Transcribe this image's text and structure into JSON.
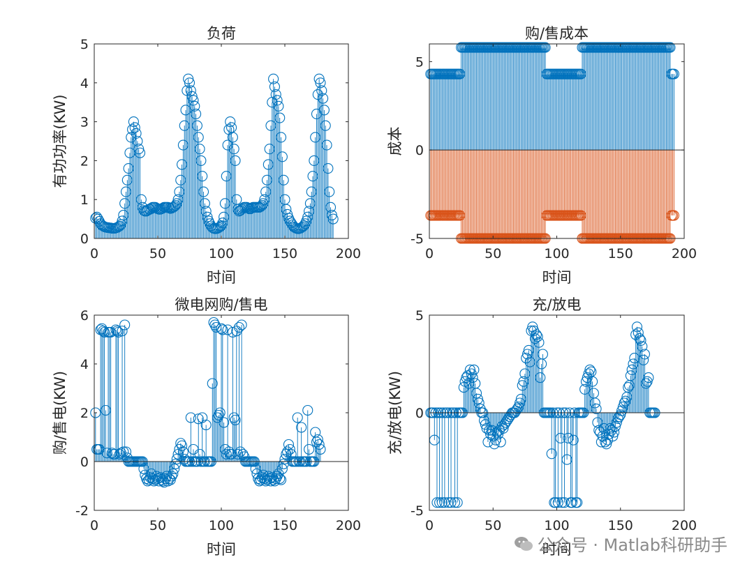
{
  "chart_data": [
    {
      "type": "stem",
      "title": "负荷",
      "xlabel": "时间",
      "ylabel": "有功功率(KW)",
      "xlim": [
        0,
        200
      ],
      "ylim": [
        0,
        5
      ],
      "xticks": [
        0,
        50,
        100,
        150,
        200
      ],
      "yticks": [
        0,
        1,
        2,
        3,
        4,
        5
      ],
      "colors": [
        "#0072BD"
      ],
      "series": [
        {
          "x_start": 1,
          "x_step": 1,
          "values": [
            0.52,
            0.55,
            0.5,
            0.44,
            0.38,
            0.34,
            0.32,
            0.3,
            0.29,
            0.28,
            0.28,
            0.27,
            0.27,
            0.26,
            0.26,
            0.26,
            0.27,
            0.28,
            0.3,
            0.32,
            0.36,
            0.45,
            0.6,
            0.9,
            1.2,
            1.5,
            1.8,
            2.2,
            2.6,
            2.8,
            3.0,
            2.85,
            2.7,
            2.5,
            2.3,
            2.2,
            1.0,
            0.8,
            0.72,
            0.7,
            0.7,
            0.72,
            0.75,
            0.75,
            0.78,
            0.8,
            0.8,
            0.8,
            0.78,
            0.76,
            0.75,
            0.75,
            0.76,
            0.78,
            0.8,
            0.8,
            0.8,
            0.8,
            0.78,
            0.77,
            0.78,
            0.8,
            0.82,
            0.85,
            0.9,
            1.0,
            1.2,
            1.5,
            1.9,
            2.4,
            2.9,
            3.3,
            3.8,
            4.1,
            4.0,
            3.8,
            3.65,
            3.55,
            3.4,
            3.2,
            2.9,
            2.6,
            2.3,
            2.0,
            1.6,
            1.2,
            0.9,
            0.7,
            0.55,
            0.45,
            0.38,
            0.32,
            0.28,
            0.26,
            0.25,
            0.25,
            0.26,
            0.28,
            0.3,
            0.33,
            0.4,
            0.55,
            0.9,
            1.6,
            2.4,
            2.8,
            3.0,
            2.85,
            2.6,
            2.3,
            2.0,
            1.0,
            0.75,
            0.7,
            0.72,
            0.75,
            0.78,
            0.8,
            0.8,
            0.8,
            0.78,
            0.76,
            0.76,
            0.78,
            0.8,
            0.8,
            0.8,
            0.8,
            0.8,
            0.8,
            0.82,
            0.85,
            0.9,
            1.0,
            1.2,
            1.5,
            1.9,
            2.3,
            2.9,
            3.5,
            4.1,
            3.9,
            3.7,
            3.55,
            3.4,
            3.1,
            2.6,
            2.1,
            1.5,
            1.0,
            0.75,
            0.62,
            0.52,
            0.45,
            0.4,
            0.35,
            0.3,
            0.28,
            0.26,
            0.25,
            0.25,
            0.26,
            0.28,
            0.3,
            0.33,
            0.38,
            0.45,
            0.55,
            0.7,
            0.9,
            1.2,
            1.6,
            2.0,
            2.6,
            3.2,
            3.7,
            4.1,
            4.0,
            3.8,
            3.6,
            3.3,
            2.9,
            2.4,
            1.8,
            1.2,
            0.8,
            0.6,
            0.5
          ]
        }
      ]
    },
    {
      "type": "stem",
      "title": "购/售成本",
      "xlabel": "时间",
      "ylabel": "成本",
      "xlim": [
        0,
        200
      ],
      "ylim": [
        -5,
        6
      ],
      "xticks": [
        0,
        50,
        100,
        150,
        200
      ],
      "yticks": [
        -5,
        0,
        5
      ],
      "colors": [
        "#0072BD",
        "#D95319"
      ],
      "series": [
        {
          "x_start": 1,
          "x_step": 1,
          "segments": [
            [
              1,
              24,
              4.3
            ],
            [
              25,
              91,
              5.8
            ],
            [
              92,
              119,
              4.3
            ],
            [
              120,
              189,
              5.8
            ],
            [
              190,
              192,
              4.3
            ]
          ]
        },
        {
          "x_start": 1,
          "x_step": 1,
          "segments": [
            [
              1,
              24,
              -3.7
            ],
            [
              25,
              91,
              -5.0
            ],
            [
              92,
              119,
              -3.7
            ],
            [
              120,
              189,
              -5.0
            ],
            [
              190,
              192,
              -3.7
            ]
          ]
        }
      ]
    },
    {
      "type": "stem",
      "title": "微电网购/售电",
      "xlabel": "时间",
      "ylabel": "购/售电(KW)",
      "xlim": [
        0,
        200
      ],
      "ylim": [
        -2,
        6
      ],
      "xticks": [
        0,
        50,
        100,
        150,
        200
      ],
      "yticks": [
        -2,
        0,
        2,
        4,
        6
      ],
      "colors": [
        "#0072BD"
      ],
      "series": [
        {
          "x_start": 1,
          "x_step": 1,
          "values": [
            2.0,
            0.5,
            0.5,
            0.5,
            5.4,
            5.45,
            5.35,
            5.3,
            2.1,
            0.35,
            5.3,
            5.3,
            5.3,
            0.35,
            0.3,
            0.3,
            5.4,
            5.35,
            5.3,
            0.3,
            0.35,
            5.35,
            0.4,
            5.6,
            0.4,
            0.15,
            0.0,
            0.0,
            0.0,
            0.0,
            0.0,
            0.0,
            0.0,
            0.0,
            0.0,
            0.0,
            0.0,
            0.0,
            -0.3,
            -0.55,
            -0.7,
            -0.8,
            -0.75,
            -0.65,
            -0.5,
            -0.7,
            -0.8,
            -0.75,
            -0.6,
            -0.7,
            -0.8,
            -0.65,
            -0.75,
            -0.8,
            -0.85,
            -0.7,
            -0.6,
            -0.8,
            -0.7,
            -0.75,
            -0.6,
            -0.5,
            -0.3,
            -0.1,
            0.1,
            0.3,
            0.5,
            0.75,
            0.65,
            0.4,
            0.1,
            0.0,
            0.0,
            0.0,
            0.0,
            1.8,
            0.0,
            0.5,
            0.0,
            0.0,
            0.0,
            1.75,
            0.3,
            0.0,
            1.8,
            0.0,
            0.0,
            1.5,
            0.0,
            0.0,
            0.0,
            0.0,
            3.2,
            5.7,
            5.6,
            5.5,
            1.8,
            1.9,
            2.0,
            5.45,
            5.4,
            1.6,
            0.5,
            0.3,
            5.4,
            0.4,
            0.3,
            0.3,
            5.3,
            1.8,
            1.7,
            5.35,
            0.3,
            5.5,
            0.4,
            5.6,
            0.3,
            0.2,
            0.0,
            0.0,
            0.0,
            0.0,
            0.0,
            0.0,
            0.0,
            0.0,
            -0.3,
            -0.5,
            -0.7,
            -0.8,
            -0.75,
            -0.65,
            -0.55,
            -0.7,
            -0.8,
            -0.75,
            -0.6,
            -0.7,
            -0.8,
            -0.65,
            -0.75,
            -0.8,
            -0.7,
            -0.6,
            -0.5,
            -0.7,
            -0.75,
            -0.3,
            -0.1,
            0.1,
            0.3,
            0.4,
            0.7,
            0.5,
            0.3,
            0.0,
            0.0,
            0.0,
            0.0,
            1.8,
            0.0,
            0.0,
            1.4,
            0.0,
            0.0,
            0.0,
            0.0,
            2.1,
            0.5,
            0.0,
            0.0,
            0.0,
            0.0,
            1.2,
            0.8,
            0.9,
            0.7,
            0.5
          ]
        }
      ]
    },
    {
      "type": "stem",
      "title": "充/放电",
      "xlabel": "时间",
      "ylabel": "充/放电(KW)",
      "xlim": [
        0,
        200
      ],
      "ylim": [
        -5,
        5
      ],
      "xticks": [
        0,
        50,
        100,
        150,
        200
      ],
      "yticks": [
        -5,
        0,
        5
      ],
      "colors": [
        "#0072BD"
      ],
      "series": [
        {
          "x_start": 1,
          "x_step": 1,
          "values": [
            0,
            0,
            0,
            -1.4,
            0,
            -4.6,
            0,
            -4.6,
            0,
            -4.6,
            0,
            -4.6,
            0,
            0,
            -4.6,
            0,
            -4.6,
            0,
            0,
            -4.6,
            0,
            -4.6,
            0,
            0,
            0,
            0,
            1.3,
            1.6,
            1.8,
            1.9,
            1.5,
            2.2,
            2.0,
            1.8,
            2.2,
            1.5,
            1.0,
            0.7,
            0.5,
            0.2,
            0,
            0,
            -0.4,
            -0.6,
            -0.8,
            -1.5,
            -0.9,
            -1.1,
            -0.9,
            -1.2,
            -1.6,
            -1.4,
            -1.0,
            -1.1,
            -0.9,
            -1.5,
            -0.7,
            -0.8,
            -0.6,
            -0.5,
            -0.4,
            -0.3,
            -0.2,
            -0.1,
            0,
            0,
            0,
            0.1,
            0.2,
            0.3,
            0.5,
            0.7,
            1.4,
            1.6,
            2.0,
            2.8,
            3.0,
            3.2,
            2.6,
            4.2,
            4.4,
            4.2,
            3.8,
            4.0,
            3.9,
            3.6,
            1.8,
            2.5,
            3.0,
            0,
            0,
            0,
            0,
            0,
            0,
            -2.1,
            0,
            -4.6,
            -4.6,
            0,
            -4.6,
            0,
            -1.3,
            -4.6,
            0,
            -4.6,
            0,
            -2.4,
            -1.3,
            0,
            -4.6,
            -4.6,
            -1.4,
            0,
            -4.6,
            -4.6,
            0,
            0,
            0,
            0,
            0,
            1.2,
            1.6,
            1.8,
            2.0,
            2.2,
            2.1,
            1.6,
            1.0,
            0.5,
            0.2,
            -0.5,
            -0.9,
            -1.0,
            -1.5,
            -1.2,
            -0.8,
            -1.5,
            -1.6,
            -1.4,
            -1.1,
            -0.8,
            -0.9,
            -1.2,
            -1.0,
            -0.7,
            -0.5,
            -0.3,
            -0.2,
            -0.1,
            0.1,
            0.3,
            0.5,
            0.6,
            0.8,
            1.3,
            1.4,
            1.9,
            2.2,
            2.5,
            2.8,
            4.0,
            4.4,
            4.1,
            3.8,
            3.7,
            3.4,
            2.7,
            3.0,
            1.5,
            1.6,
            1.8,
            0,
            0,
            0,
            0,
            0
          ]
        }
      ]
    }
  ],
  "watermark": {
    "text": "公众号 · Matlab科研助手"
  }
}
